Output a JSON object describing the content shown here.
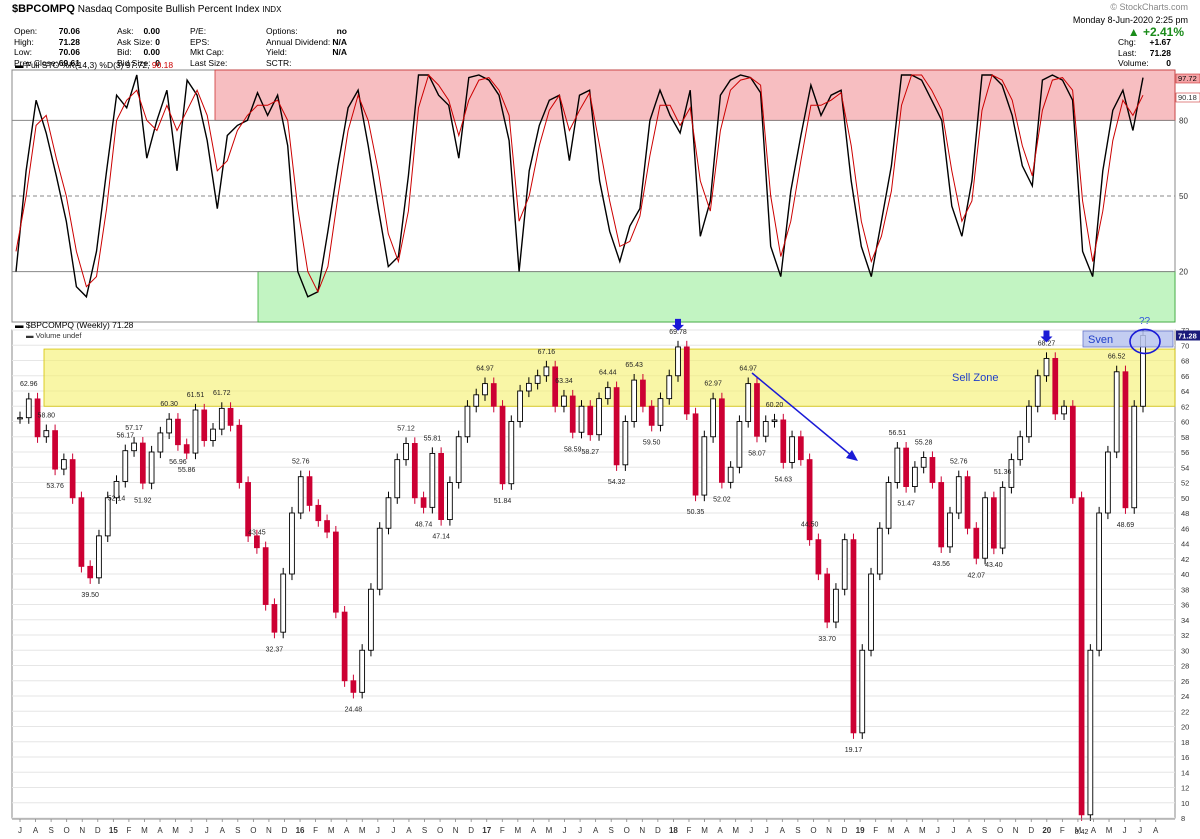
{
  "header": {
    "symbol": "$BPCOMPQ",
    "name": "Nasdaq Composite Bullish Percent Index",
    "exchange": "INDX",
    "copyright": "© StockCharts.com",
    "date_line": "Monday   8-Jun-2020   2:25 pm",
    "pct_change": "▲ +2.41%",
    "quote_col1": [
      {
        "label": "Open:",
        "value": "70.06"
      },
      {
        "label": "High:",
        "value": "71.28"
      },
      {
        "label": "Low:",
        "value": "70.06"
      },
      {
        "label": "Prev Close:",
        "value": "69.61"
      }
    ],
    "quote_col2": [
      {
        "label": "Ask:",
        "value": "0.00"
      },
      {
        "label": "Ask Size:",
        "value": "0"
      },
      {
        "label": "Bid:",
        "value": "0.00"
      },
      {
        "label": "Bid Size:",
        "value": "0"
      }
    ],
    "quote_col3": [
      {
        "label": "P/E:",
        "value": ""
      },
      {
        "label": "EPS:",
        "value": ""
      },
      {
        "label": "Mkt Cap:",
        "value": ""
      },
      {
        "label": "Last Size:",
        "value": ""
      }
    ],
    "quote_col4": [
      {
        "label": "Options:",
        "value": "no"
      },
      {
        "label": "Annual Dividend:",
        "value": "N/A"
      },
      {
        "label": "Yield:",
        "value": "N/A"
      },
      {
        "label": "SCTR:",
        "value": ""
      }
    ],
    "quote_col5": [
      {
        "label": "Chg:",
        "value": "+1.67"
      },
      {
        "label": "Last:",
        "value": "71.28"
      },
      {
        "label": "Volume:",
        "value": "0"
      }
    ]
  },
  "colors": {
    "up_candle": "#000000",
    "down_candle": "#cc0033",
    "k_line": "#000000",
    "d_line": "#cc0000",
    "overbought_zone": "#f4a3a6",
    "oversold_zone": "#a8efa8",
    "sell_zone": "#f5f06a",
    "annotation_blue": "#1a1ad6"
  },
  "chart_data": [
    {
      "type": "line",
      "legend": "Full STO %K(14,3) %D(3) 97.72, 90.18",
      "legend_prefix": "Full STO %K(14,3) %D(3) 97.72, ",
      "legend_red": "90.18",
      "ylim": [
        0,
        100
      ],
      "y_ticks": [
        "80",
        "50",
        "20"
      ],
      "last_k_label": "97.72",
      "last_d_label": "90.18",
      "overbought_zone": [
        80,
        100
      ],
      "oversold_zone": [
        0,
        20
      ],
      "series": [
        {
          "name": "%K",
          "values": [
            20,
            60,
            88,
            75,
            58,
            40,
            14,
            10,
            28,
            60,
            90,
            85,
            98,
            65,
            80,
            92,
            60,
            96,
            90,
            72,
            45,
            74,
            78,
            80,
            91,
            82,
            90,
            70,
            20,
            10,
            12,
            36,
            62,
            85,
            92,
            70,
            45,
            22,
            26,
            58,
            98,
            99,
            90,
            86,
            65,
            97,
            98,
            96,
            90,
            72,
            20,
            60,
            78,
            88,
            90,
            64,
            90,
            92,
            56,
            36,
            24,
            38,
            45,
            80,
            92,
            82,
            75,
            92,
            34,
            48,
            90,
            96,
            98,
            97,
            91,
            30,
            18,
            52,
            74,
            94,
            82,
            90,
            92,
            56,
            30,
            18,
            40,
            62,
            98,
            100,
            96,
            88,
            80,
            46,
            34,
            56,
            98,
            98,
            94,
            82,
            62,
            54,
            96,
            98,
            96,
            88,
            28,
            18,
            60,
            84,
            92,
            76,
            97
          ]
        },
        {
          "name": "%D",
          "values": [
            28,
            50,
            78,
            82,
            65,
            50,
            28,
            14,
            18,
            45,
            80,
            88,
            92,
            80,
            76,
            86,
            76,
            84,
            92,
            82,
            60,
            64,
            76,
            82,
            86,
            86,
            88,
            80,
            45,
            20,
            12,
            22,
            50,
            76,
            90,
            80,
            60,
            35,
            24,
            44,
            85,
            98,
            94,
            88,
            74,
            88,
            96,
            97,
            92,
            82,
            40,
            50,
            70,
            84,
            90,
            76,
            84,
            91,
            70,
            48,
            30,
            32,
            42,
            66,
            86,
            86,
            78,
            85,
            56,
            44,
            76,
            92,
            96,
            97,
            94,
            50,
            26,
            40,
            64,
            86,
            86,
            88,
            91,
            70,
            40,
            24,
            34,
            52,
            86,
            98,
            98,
            92,
            84,
            60,
            40,
            48,
            84,
            98,
            96,
            88,
            70,
            58,
            84,
            96,
            97,
            92,
            48,
            24,
            44,
            72,
            88,
            82,
            90
          ]
        }
      ]
    },
    {
      "type": "candlestick",
      "legend": "$BPCOMPQ (Weekly) 71.28",
      "volume_label": "Volume undef",
      "ylim": [
        8,
        72
      ],
      "y_ticks": [
        "72",
        "70",
        "68",
        "66",
        "64",
        "62",
        "60",
        "58",
        "56",
        "54",
        "52",
        "50",
        "48",
        "46",
        "44",
        "42",
        "40",
        "38",
        "36",
        "34",
        "32",
        "30",
        "28",
        "26",
        "24",
        "22",
        "20",
        "18",
        "16",
        "14",
        "12",
        "10",
        "8"
      ],
      "last_value_label": "71.28",
      "sell_zone_label": "Sell Zone",
      "sell_zone": [
        62,
        69.5
      ],
      "annotation_text": "Sven",
      "question_text": "??",
      "x_axis_labels": [
        "J",
        "A",
        "S",
        "O",
        "N",
        "D",
        "15",
        "F",
        "M",
        "A",
        "M",
        "J",
        "J",
        "A",
        "S",
        "O",
        "N",
        "D",
        "16",
        "F",
        "M",
        "A",
        "M",
        "J",
        "J",
        "A",
        "S",
        "O",
        "N",
        "D",
        "17",
        "F",
        "M",
        "A",
        "M",
        "J",
        "J",
        "A",
        "S",
        "O",
        "N",
        "D",
        "18",
        "F",
        "M",
        "A",
        "M",
        "J",
        "J",
        "A",
        "S",
        "O",
        "N",
        "D",
        "19",
        "F",
        "M",
        "A",
        "M",
        "J",
        "J",
        "A",
        "S",
        "O",
        "N",
        "D",
        "20",
        "F",
        "M",
        "A",
        "M",
        "J",
        "J",
        "A"
      ],
      "series": [
        {
          "name": "$BPCOMPQ",
          "values": [
            60.5,
            62.96,
            58.0,
            58.8,
            53.76,
            55.0,
            50.0,
            41.0,
            39.5,
            45.0,
            50.0,
            52.14,
            56.17,
            57.17,
            51.92,
            56.0,
            58.5,
            60.3,
            56.96,
            55.86,
            61.51,
            57.5,
            59.0,
            61.72,
            59.5,
            52.0,
            45.0,
            43.45,
            36.0,
            32.37,
            40.0,
            48.0,
            52.76,
            49.0,
            47.0,
            45.5,
            35.0,
            26.0,
            24.48,
            30.0,
            38.0,
            46.0,
            50.0,
            55.0,
            57.12,
            50.0,
            48.74,
            55.81,
            47.14,
            52.0,
            58.0,
            62.0,
            63.5,
            64.97,
            62.0,
            51.84,
            60.0,
            64.0,
            65.0,
            66.0,
            67.16,
            62.0,
            63.34,
            58.59,
            62.0,
            58.27,
            63.0,
            64.44,
            54.32,
            60.0,
            65.43,
            62.0,
            59.5,
            63.0,
            66.0,
            69.78,
            61.0,
            50.35,
            58.0,
            62.97,
            52.02,
            54.0,
            60.0,
            64.97,
            58.07,
            60.0,
            60.2,
            54.63,
            58.0,
            55.0,
            44.5,
            40.0,
            33.7,
            38.0,
            44.5,
            19.17,
            30.0,
            40.0,
            46.0,
            52.0,
            56.51,
            51.47,
            54.0,
            55.28,
            52.0,
            43.56,
            48.0,
            52.76,
            46.0,
            42.07,
            50.0,
            43.4,
            51.36,
            55.0,
            58.0,
            62.0,
            66.0,
            68.27,
            61.0,
            62.0,
            50.0,
            8.42,
            30.0,
            48.0,
            56.0,
            66.52,
            48.69,
            62.0,
            71.28
          ]
        }
      ],
      "point_labels": [
        {
          "i": 1,
          "text": "62.96",
          "pos": "above"
        },
        {
          "i": 3,
          "text": "58.80",
          "pos": "above"
        },
        {
          "i": 4,
          "text": "53.76",
          "pos": "below"
        },
        {
          "i": 8,
          "text": "39.50",
          "pos": "below"
        },
        {
          "i": 11,
          "text": "52.14",
          "pos": "below"
        },
        {
          "i": 12,
          "text": "56.17",
          "pos": "above"
        },
        {
          "i": 13,
          "text": "57.17",
          "pos": "above"
        },
        {
          "i": 14,
          "text": "51.92",
          "pos": "below"
        },
        {
          "i": 17,
          "text": "60.30",
          "pos": "above"
        },
        {
          "i": 18,
          "text": "56.96",
          "pos": "below"
        },
        {
          "i": 19,
          "text": "55.86",
          "pos": "below"
        },
        {
          "i": 20,
          "text": "61.51",
          "pos": "above"
        },
        {
          "i": 23,
          "text": "61.72",
          "pos": "above"
        },
        {
          "i": 27,
          "text": "43.45",
          "pos": "above"
        },
        {
          "i": 29,
          "text": "32.37",
          "pos": "below"
        },
        {
          "i": 32,
          "text": "52.76",
          "pos": "above"
        },
        {
          "i": 38,
          "text": "24.48",
          "pos": "below"
        },
        {
          "i": 44,
          "text": "57.12",
          "pos": "above"
        },
        {
          "i": 46,
          "text": "48.74",
          "pos": "below"
        },
        {
          "i": 47,
          "text": "55.81",
          "pos": "above"
        },
        {
          "i": 48,
          "text": "47.14",
          "pos": "below"
        },
        {
          "i": 53,
          "text": "64.97",
          "pos": "above"
        },
        {
          "i": 55,
          "text": "51.84",
          "pos": "below"
        },
        {
          "i": 60,
          "text": "67.16",
          "pos": "above"
        },
        {
          "i": 62,
          "text": "63.34",
          "pos": "above"
        },
        {
          "i": 63,
          "text": "58.59",
          "pos": "below"
        },
        {
          "i": 65,
          "text": "58.27",
          "pos": "below"
        },
        {
          "i": 67,
          "text": "64.44",
          "pos": "above"
        },
        {
          "i": 68,
          "text": "54.32",
          "pos": "below"
        },
        {
          "i": 70,
          "text": "65.43",
          "pos": "above"
        },
        {
          "i": 72,
          "text": "59.50",
          "pos": "below"
        },
        {
          "i": 75,
          "text": "69.78",
          "pos": "above"
        },
        {
          "i": 77,
          "text": "50.35",
          "pos": "below"
        },
        {
          "i": 79,
          "text": "62.97",
          "pos": "above"
        },
        {
          "i": 80,
          "text": "52.02",
          "pos": "below"
        },
        {
          "i": 83,
          "text": "64.97",
          "pos": "above"
        },
        {
          "i": 84,
          "text": "58.07",
          "pos": "below"
        },
        {
          "i": 86,
          "text": "60.20",
          "pos": "above"
        },
        {
          "i": 87,
          "text": "54.63",
          "pos": "below"
        },
        {
          "i": 90,
          "text": "44.50",
          "pos": "above"
        },
        {
          "i": 92,
          "text": "33.70",
          "pos": "below"
        },
        {
          "i": 95,
          "text": "19.17",
          "pos": "below"
        },
        {
          "i": 100,
          "text": "56.51",
          "pos": "above"
        },
        {
          "i": 101,
          "text": "51.47",
          "pos": "below"
        },
        {
          "i": 103,
          "text": "55.28",
          "pos": "above"
        },
        {
          "i": 105,
          "text": "43.56",
          "pos": "below"
        },
        {
          "i": 107,
          "text": "52.76",
          "pos": "above"
        },
        {
          "i": 109,
          "text": "42.07",
          "pos": "below"
        },
        {
          "i": 111,
          "text": "43.40",
          "pos": "below"
        },
        {
          "i": 112,
          "text": "51.36",
          "pos": "above"
        },
        {
          "i": 117,
          "text": "68.27",
          "pos": "above"
        },
        {
          "i": 121,
          "text": "8.42",
          "pos": "below"
        },
        {
          "i": 125,
          "text": "66.52",
          "pos": "above"
        },
        {
          "i": 126,
          "text": "48.69",
          "pos": "below"
        }
      ]
    }
  ]
}
